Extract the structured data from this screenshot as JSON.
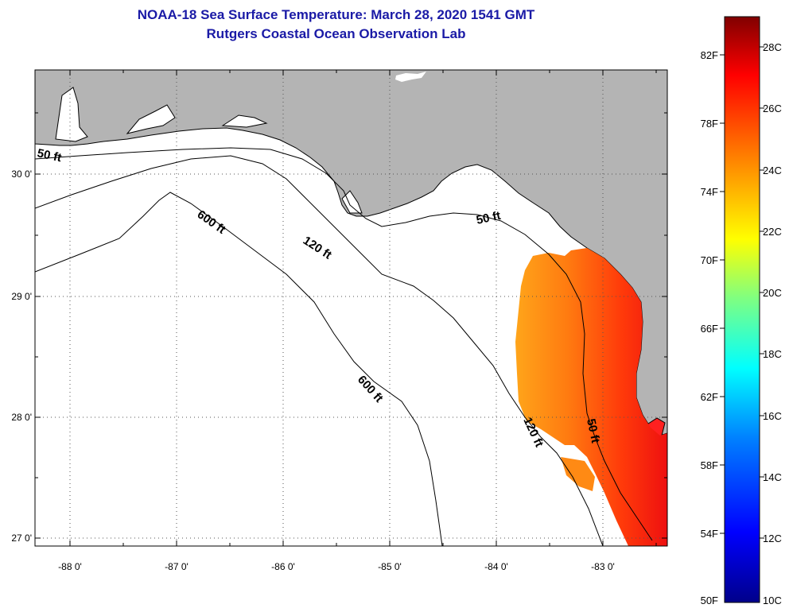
{
  "header": {
    "title_line1": "NOAA-18 Sea Surface Temperature:  March 28, 2020 1541 GMT",
    "title_line2": "Rutgers Coastal Ocean Observation Lab"
  },
  "map": {
    "longitude_labels": [
      "-88 0'",
      "-87 0'",
      "-86 0'",
      "-85 0'",
      "-84 0'",
      "-83 0'"
    ],
    "latitude_labels": [
      "30 0'",
      "29 0'",
      "28 0'",
      "27 0'"
    ],
    "contour_labels": {
      "c50_west": "50 ft",
      "c600_north": "600 ft",
      "c120_north": "120 ft",
      "c50_east": "50 ft",
      "c600_south": "600 ft",
      "c120_south": "120 ft",
      "c50_south": "50 ft"
    },
    "colors": {
      "land": "#b4b4b4",
      "ocean_nodata": "#ffffff"
    }
  },
  "colorbar": {
    "fahrenheit_labels": [
      "82F",
      "78F",
      "74F",
      "70F",
      "66F",
      "62F",
      "58F",
      "54F",
      "50F"
    ],
    "celsius_labels": [
      "28C",
      "26C",
      "24C",
      "22C",
      "20C",
      "18C",
      "16C",
      "14C",
      "12C",
      "10C"
    ],
    "gradient_stops": [
      "#00008a",
      "#0000ff",
      "#0080ff",
      "#00ffff",
      "#80ff80",
      "#ffff00",
      "#ff8000",
      "#ff0000",
      "#800000"
    ]
  }
}
